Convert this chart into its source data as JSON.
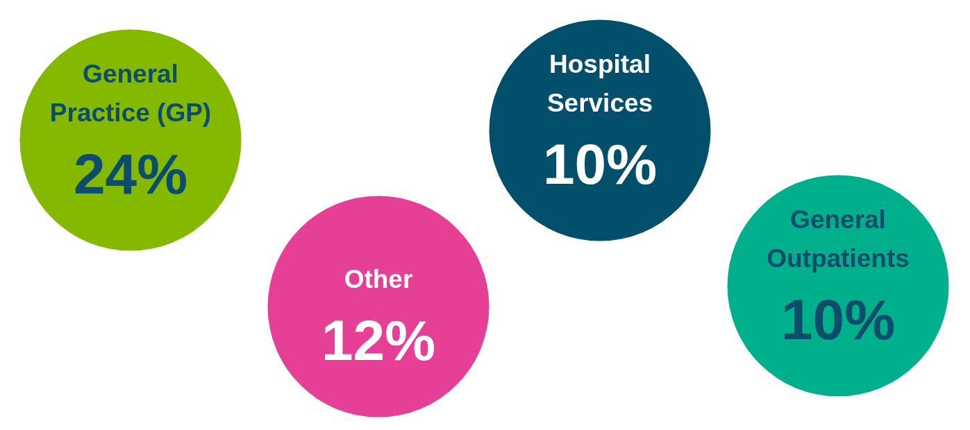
{
  "chart_data": {
    "type": "other",
    "categories": [
      "General Practice (GP)",
      "Other",
      "Hospital Services",
      "General Outpatients"
    ],
    "values": [
      24,
      12,
      10,
      10
    ],
    "value_labels": [
      "24%",
      "12%",
      "10%",
      "10%"
    ],
    "colors": [
      "#84b900",
      "#e63f96",
      "#014f6b",
      "#00b08c"
    ]
  }
}
